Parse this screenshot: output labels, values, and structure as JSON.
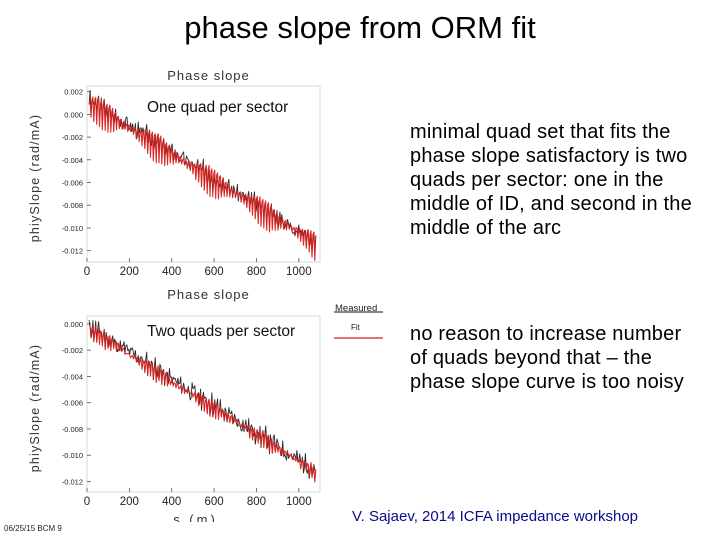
{
  "title": "phase slope from ORM fit",
  "bullets": [
    "minimal quad set that fits the phase slope satisfactory is two quads per sector: one in the middle of ID, and second in the middle of the arc",
    "no reason to increase number of quads beyond that – the phase slope curve is too noisy"
  ],
  "footer": {
    "date": "06/25/15 BCM 9",
    "credit": "V. Sajaev, 2014 ICFA impedance workshop"
  },
  "legend": {
    "measured": "Measured",
    "fit": "Fit"
  },
  "colors": {
    "measured": "#111111",
    "fit": "#d81e1e"
  },
  "chart_data": [
    {
      "type": "line",
      "title": "Phase slope",
      "annotation": "One quad per sector",
      "xlabel": "",
      "ylabel": "phiySlope (rad/mA)",
      "xlim": [
        0,
        1100
      ],
      "ylim": [
        -0.013,
        0.0025
      ],
      "x_ticks": [
        0,
        200,
        400,
        600,
        800,
        1000
      ],
      "y_ticks": [
        "0.002",
        "0.000",
        "-0.002",
        "-0.004",
        "-0.006",
        "-0.008",
        "-0.010",
        "-0.012"
      ],
      "y_tick_values": [
        0.002,
        0.0,
        -0.002,
        -0.004,
        -0.006,
        -0.008,
        -0.01,
        -0.012
      ],
      "series": [
        {
          "name": "Measured",
          "start": 0.0012,
          "end": -0.0112,
          "ripple": 0.0008,
          "noise": 0.0006,
          "seed": 3
        },
        {
          "name": "Fit",
          "start": 0.001,
          "end": -0.0113,
          "ripple": 0.0016,
          "noise": 0.0001,
          "seed": 7
        }
      ]
    },
    {
      "type": "line",
      "title": "Phase slope",
      "annotation": "Two quads per sector",
      "xlabel": "s (m)",
      "ylabel": "phiySlope (rad/mA)",
      "xlim": [
        0,
        1100
      ],
      "ylim": [
        -0.0128,
        0.0006
      ],
      "x_ticks": [
        0,
        200,
        400,
        600,
        800,
        1000
      ],
      "y_ticks": [
        "0.000",
        "-0.002",
        "-0.004",
        "-0.006",
        "-0.008",
        "-0.010",
        "-0.012"
      ],
      "y_tick_values": [
        0.0,
        -0.002,
        -0.004,
        -0.006,
        -0.008,
        -0.01,
        -0.012
      ],
      "series": [
        {
          "name": "Measured",
          "start": -0.0002,
          "end": -0.0112,
          "ripple": 0.0005,
          "noise": 0.0006,
          "seed": 11
        },
        {
          "name": "Fit",
          "start": -0.0004,
          "end": -0.0113,
          "ripple": 0.0007,
          "noise": 0.0002,
          "seed": 5
        }
      ]
    }
  ]
}
